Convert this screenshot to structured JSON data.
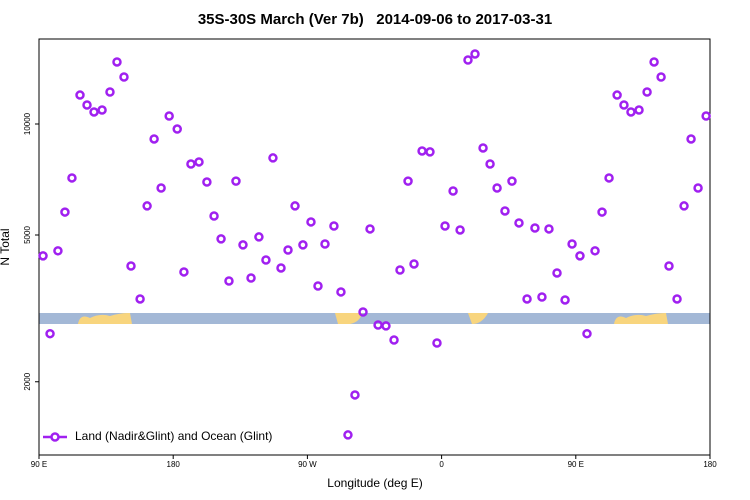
{
  "chart_data": {
    "type": "scatter",
    "title": "35S-30S March (Ver 7b)   2014-09-06 to 2017-03-31",
    "xlabel": "Longitude (deg E)",
    "ylabel": "N Total",
    "log_y": true,
    "legend": "lower left",
    "xlim": [
      90,
      540
    ],
    "xticks": [
      {
        "value": 90,
        "label": "90 E"
      },
      180,
      {
        "value": 270,
        "label": "90 W"
      },
      {
        "value": 360,
        "label": "0"
      },
      {
        "value": 450,
        "label": "90 E"
      },
      {
        "value": 540,
        "label": "180"
      }
    ],
    "ylim": [
      1266,
      17000
    ],
    "yticks": [
      2000,
      5000,
      10000
    ],
    "x": [
      92.7,
      97.4,
      102.7,
      107.4,
      112.1,
      117.5,
      122.2,
      126.9,
      132.3,
      137.6,
      142.3,
      147,
      151.7,
      157.8,
      162.5,
      167.2,
      171.9,
      177.3,
      182.7,
      187.2,
      191.9,
      197.3,
      202.6,
      207.4,
      212.1,
      217.4,
      222.1,
      226.8,
      232.2,
      237.5,
      242.2,
      246.9,
      252.3,
      257,
      261.7,
      267,
      272.4,
      277.1,
      281.8,
      287.8,
      292.5,
      297.2,
      301.9,
      307.3,
      312,
      317.4,
      322.7,
      328.1,
      332.1,
      337.5,
      341.5,
      346.9,
      352.2,
      356.9,
      362.3,
      367.7,
      372.4,
      377.7,
      382.4,
      387.8,
      392.5,
      397.2,
      402.5,
      407.2,
      411.9,
      417.3,
      422.6,
      427.3,
      432,
      437.4,
      442.8,
      447.5,
      452.8,
      457.5,
      462.9,
      467.6,
      472.3,
      477.7,
      482.3,
      487,
      492.4,
      497.8,
      502.5,
      507.2,
      512.5,
      517.9,
      522.6,
      527.3,
      532,
      537.4
    ],
    "series": [
      {
        "name": "Land (Nadir&Glint) and Ocean (Glint)",
        "color": "#a020f0",
        "values": [
          4390,
          2700,
          4530,
          5770,
          7140,
          11980,
          11260,
          10780,
          10910,
          12210,
          14730,
          13410,
          4120,
          3354,
          5995,
          9107,
          6706,
          10510,
          9690,
          3970,
          7790,
          7890,
          6960,
          5630,
          4880,
          3752,
          7000,
          4700,
          3823,
          4940,
          4278,
          8090,
          4070,
          4553,
          5995,
          4700,
          5425,
          3637,
          4727,
          5290,
          3504,
          1435,
          1842,
          3092,
          5193,
          2851,
          2834,
          2596,
          4019,
          7000,
          4173,
          8450,
          8400,
          2548,
          5290,
          6580,
          5160,
          14910,
          15480,
          8610,
          7790,
          6706,
          5810,
          7000,
          5391,
          3354,
          5224,
          3395,
          5193,
          3945,
          3333,
          4727,
          4390,
          2700,
          4530,
          5770,
          7140,
          11980,
          11260,
          10780,
          10910,
          12210,
          14730,
          13410,
          4120,
          3354,
          5995,
          9107,
          6706,
          10510
        ]
      }
    ]
  }
}
